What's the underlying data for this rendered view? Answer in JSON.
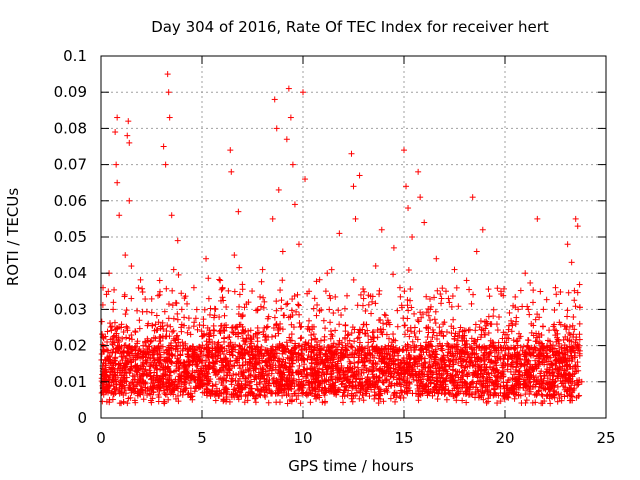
{
  "chart_data": {
    "type": "scatter",
    "title": "Day 304 of 2016, Rate Of TEC Index for receiver hert",
    "xlabel": "GPS time / hours",
    "ylabel": "ROTI / TECUs",
    "xlim": [
      0,
      25
    ],
    "ylim": [
      0,
      0.1
    ],
    "xticks": [
      0,
      5,
      10,
      15,
      20,
      25
    ],
    "xtick_labels": [
      "0",
      "5",
      "10",
      "15",
      "20",
      "25"
    ],
    "yticks": [
      0,
      0.01,
      0.02,
      0.03,
      0.04,
      0.05,
      0.06,
      0.07,
      0.08,
      0.09,
      0.1
    ],
    "ytick_labels": [
      "0",
      "0.01",
      "0.02",
      "0.03",
      "0.04",
      "0.05",
      "0.06",
      "0.07",
      "0.08",
      "0.09",
      "0.1"
    ],
    "grid": true,
    "marker": "+",
    "marker_color": "#ff0000",
    "series": [
      {
        "name": "ROTI",
        "points": [
          [
            0.1,
            0.036
          ],
          [
            0.2,
            0.012
          ],
          [
            0.3,
            0.021
          ],
          [
            0.4,
            0.04
          ],
          [
            0.5,
            0.015
          ],
          [
            0.6,
            0.03
          ],
          [
            0.7,
            0.079
          ],
          [
            0.75,
            0.07
          ],
          [
            0.8,
            0.083
          ],
          [
            0.8,
            0.065
          ],
          [
            0.9,
            0.056
          ],
          [
            1.0,
            0.025
          ],
          [
            1.1,
            0.018
          ],
          [
            1.2,
            0.045
          ],
          [
            1.3,
            0.078
          ],
          [
            1.35,
            0.082
          ],
          [
            1.4,
            0.076
          ],
          [
            1.4,
            0.06
          ],
          [
            1.5,
            0.033
          ],
          [
            1.7,
            0.014
          ],
          [
            1.9,
            0.027
          ],
          [
            2.1,
            0.01
          ],
          [
            2.3,
            0.019
          ],
          [
            2.5,
            0.008
          ],
          [
            2.7,
            0.022
          ],
          [
            2.9,
            0.034
          ],
          [
            3.1,
            0.075
          ],
          [
            3.2,
            0.07
          ],
          [
            3.3,
            0.095
          ],
          [
            3.35,
            0.09
          ],
          [
            3.4,
            0.083
          ],
          [
            3.5,
            0.056
          ],
          [
            3.6,
            0.041
          ],
          [
            3.8,
            0.049
          ],
          [
            4.0,
            0.03
          ],
          [
            4.3,
            0.017
          ],
          [
            4.6,
            0.036
          ],
          [
            4.9,
            0.012
          ],
          [
            5.2,
            0.044
          ],
          [
            5.5,
            0.021
          ],
          [
            5.9,
            0.038
          ],
          [
            6.2,
            0.025
          ],
          [
            6.4,
            0.074
          ],
          [
            6.45,
            0.068
          ],
          [
            6.6,
            0.045
          ],
          [
            6.8,
            0.057
          ],
          [
            7.0,
            0.019
          ],
          [
            7.3,
            0.032
          ],
          [
            7.6,
            0.015
          ],
          [
            8.0,
            0.041
          ],
          [
            8.3,
            0.028
          ],
          [
            8.5,
            0.055
          ],
          [
            8.6,
            0.088
          ],
          [
            8.7,
            0.08
          ],
          [
            8.8,
            0.063
          ],
          [
            9.0,
            0.046
          ],
          [
            9.2,
            0.077
          ],
          [
            9.3,
            0.091
          ],
          [
            9.4,
            0.083
          ],
          [
            9.5,
            0.07
          ],
          [
            9.6,
            0.059
          ],
          [
            9.8,
            0.048
          ],
          [
            10.0,
            0.09
          ],
          [
            10.1,
            0.066
          ],
          [
            10.3,
            0.035
          ],
          [
            10.6,
            0.022
          ],
          [
            10.9,
            0.016
          ],
          [
            11.2,
            0.04
          ],
          [
            11.5,
            0.029
          ],
          [
            11.8,
            0.051
          ],
          [
            12.1,
            0.024
          ],
          [
            12.4,
            0.073
          ],
          [
            12.5,
            0.064
          ],
          [
            12.6,
            0.055
          ],
          [
            12.8,
            0.067
          ],
          [
            13.0,
            0.033
          ],
          [
            13.3,
            0.018
          ],
          [
            13.6,
            0.042
          ],
          [
            13.9,
            0.052
          ],
          [
            14.2,
            0.027
          ],
          [
            14.5,
            0.047
          ],
          [
            14.8,
            0.036
          ],
          [
            15.0,
            0.074
          ],
          [
            15.1,
            0.064
          ],
          [
            15.2,
            0.058
          ],
          [
            15.4,
            0.05
          ],
          [
            15.7,
            0.068
          ],
          [
            15.8,
            0.061
          ],
          [
            16.0,
            0.054
          ],
          [
            16.3,
            0.03
          ],
          [
            16.6,
            0.044
          ],
          [
            16.9,
            0.02
          ],
          [
            17.2,
            0.033
          ],
          [
            17.5,
            0.041
          ],
          [
            17.8,
            0.025
          ],
          [
            18.1,
            0.038
          ],
          [
            18.4,
            0.061
          ],
          [
            18.6,
            0.046
          ],
          [
            18.9,
            0.052
          ],
          [
            19.2,
            0.028
          ],
          [
            19.5,
            0.017
          ],
          [
            19.8,
            0.035
          ],
          [
            20.1,
            0.023
          ],
          [
            20.4,
            0.031
          ],
          [
            20.7,
            0.013
          ],
          [
            21.0,
            0.04
          ],
          [
            21.3,
            0.026
          ],
          [
            21.6,
            0.055
          ],
          [
            21.9,
            0.03
          ],
          [
            22.2,
            0.019
          ],
          [
            22.5,
            0.036
          ],
          [
            22.8,
            0.012
          ],
          [
            23.1,
            0.048
          ],
          [
            23.3,
            0.043
          ],
          [
            23.5,
            0.055
          ],
          [
            23.6,
            0.053
          ],
          [
            23.7,
            0.026
          ],
          [
            23.8,
            0.01
          ]
        ]
      }
    ]
  }
}
